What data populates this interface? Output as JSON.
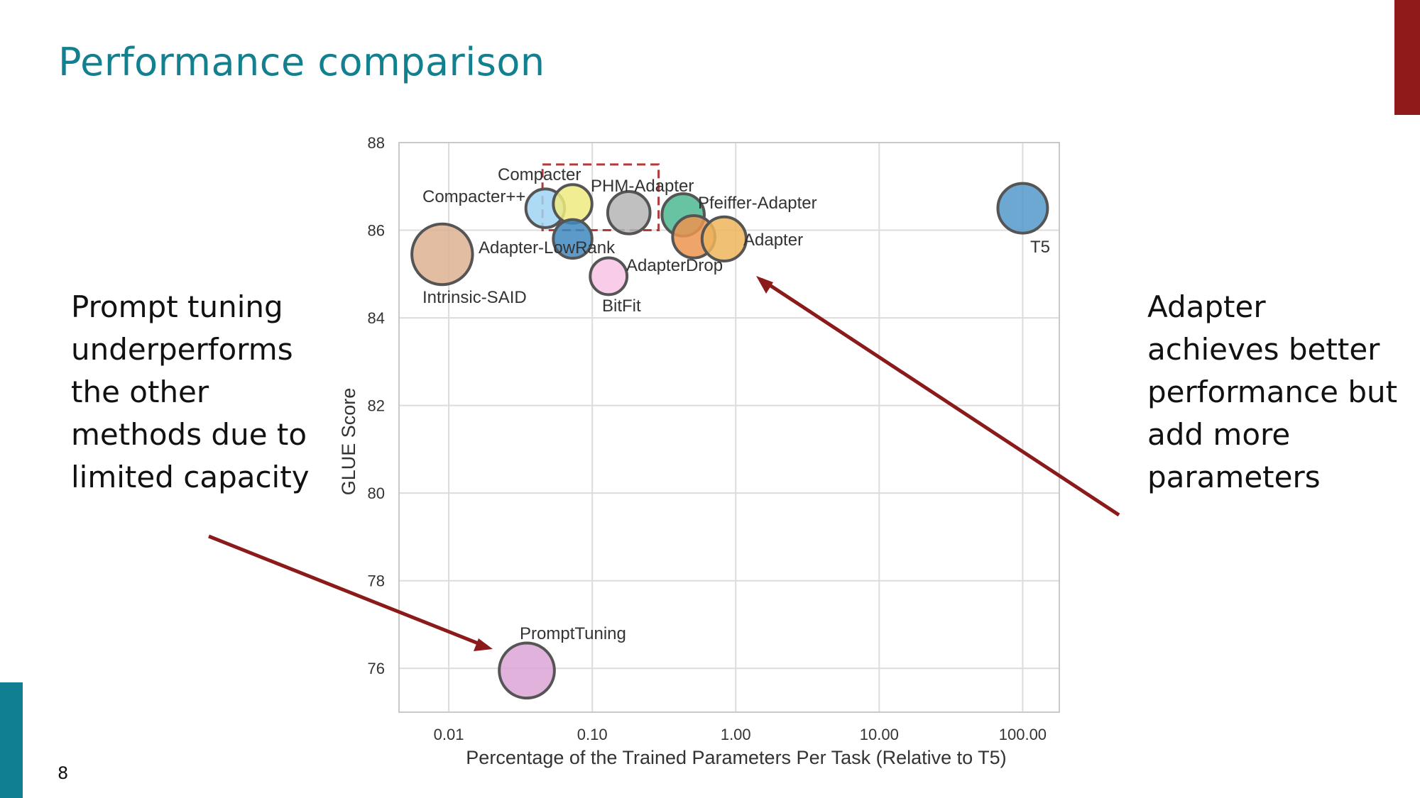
{
  "slide": {
    "title": "Performance comparison",
    "page_number": "8",
    "left_annotation": "Prompt tuning underperforms the other methods due to limited capacity",
    "right_annotation": "Adapter achieves better performance but add more parameters",
    "accent_colors": {
      "title": "#12808f",
      "top_right_bar": "#8e1a1a",
      "bottom_left_bar": "#0f7f91",
      "arrows": "#8b1a1a"
    }
  },
  "chart_data": {
    "type": "scatter",
    "xlabel": "Percentage of the Trained Parameters Per Task (Relative to T5)",
    "ylabel": "GLUE Score",
    "x_scale": "log",
    "xlim": [
      0.0045,
      180
    ],
    "ylim": [
      75,
      88
    ],
    "x_ticks": [
      {
        "value": 0.01,
        "label": "0.01"
      },
      {
        "value": 0.1,
        "label": "0.10"
      },
      {
        "value": 1,
        "label": "1.00"
      },
      {
        "value": 10,
        "label": "10.00"
      },
      {
        "value": 100,
        "label": "100.00"
      }
    ],
    "y_ticks": [
      {
        "value": 76,
        "label": "76"
      },
      {
        "value": 78,
        "label": "78"
      },
      {
        "value": 80,
        "label": "80"
      },
      {
        "value": 82,
        "label": "82"
      },
      {
        "value": 84,
        "label": "84"
      },
      {
        "value": 86,
        "label": "86"
      },
      {
        "value": 88,
        "label": "88"
      }
    ],
    "grid": true,
    "highlight_box": {
      "x": [
        0.045,
        0.29
      ],
      "y": [
        86.0,
        87.5
      ],
      "color": "#b23a3a",
      "style": "dashed"
    },
    "points": [
      {
        "label": "Intrinsic-SAID",
        "x": 0.009,
        "y": 85.45,
        "size": 3,
        "color": "#deb290"
      },
      {
        "label": "Compacter++",
        "x": 0.047,
        "y": 86.5,
        "size": 1.8,
        "color": "#9fd4f2"
      },
      {
        "label": "Compacter",
        "x": 0.073,
        "y": 86.6,
        "size": 1.8,
        "color": "#eeea80"
      },
      {
        "label": "Adapter-LowRank",
        "x": 0.073,
        "y": 85.8,
        "size": 1.8,
        "color": "#3f88c0"
      },
      {
        "label": "PHM-Adapter",
        "x": 0.18,
        "y": 86.4,
        "size": 2,
        "color": "#b5b5b5"
      },
      {
        "label": "BitFit",
        "x": 0.13,
        "y": 84.95,
        "size": 1.7,
        "color": "#f8c4e6"
      },
      {
        "label": "Pfeiffer-Adapter",
        "x": 0.43,
        "y": 86.35,
        "size": 2,
        "color": "#4cb890"
      },
      {
        "label": "AdapterDrop",
        "x": 0.51,
        "y": 85.85,
        "size": 2,
        "color": "#ec9450"
      },
      {
        "label": "Adapter",
        "x": 0.83,
        "y": 85.8,
        "size": 2.1,
        "color": "#edb55c"
      },
      {
        "label": "T5",
        "x": 100,
        "y": 86.5,
        "size": 2.4,
        "color": "#5499cb"
      },
      {
        "label": "PromptTuning",
        "x": 0.035,
        "y": 75.95,
        "size": 2.7,
        "color": "#dca6d6"
      }
    ]
  }
}
